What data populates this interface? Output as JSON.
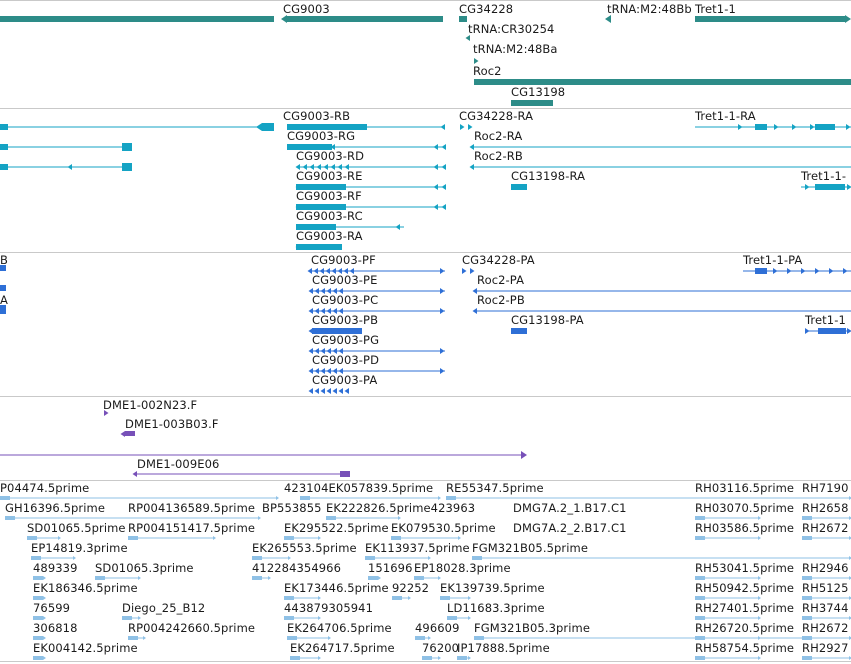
{
  "colors": {
    "gene": "#2d8c88",
    "transcript": "#14a3c4",
    "protein": "#2e6fd6",
    "bac": "#7750b8",
    "est": "#8fc1e6",
    "separator": "#c9c9c9",
    "text": "#1a1a1a"
  },
  "tracks": {
    "genes": {
      "labels": [
        "CG9003",
        "CG34228",
        "tRNA:M2:48Bb",
        "Tret1-1",
        "tRNA:CR30254",
        "tRNA:M2:48Ba",
        "Roc2",
        "CG13198"
      ]
    },
    "transcripts": {
      "labels": [
        "CG9003-RB",
        "CG34228-RA",
        "Tret1-1-RA",
        "CG9003-RG",
        "Roc2-RA",
        "CG9003-RD",
        "Roc2-RB",
        "CG9003-RE",
        "CG13198-RA",
        "Tret1-1-",
        "CG9003-RF",
        "CG9003-RC",
        "CG9003-RA"
      ]
    },
    "proteins": {
      "labels": [
        "B",
        "CG9003-PF",
        "CG34228-PA",
        "Tret1-1-PA",
        "CG9003-PE",
        "Roc2-PA",
        "CG9003-PC",
        "A",
        "Roc2-PB",
        "CG9003-PB",
        "CG13198-PA",
        "Tret1-1",
        "CG9003-PG",
        "CG9003-PD",
        "CG9003-PA"
      ]
    },
    "bac": {
      "labels": [
        "DME1-002N23.F",
        "DME1-003B03.F",
        "DME1-009E06"
      ]
    },
    "est": {
      "labels": [
        "P04474.5prime",
        "423104EK057839.5prime",
        "RE55347.5prime",
        "RH03116.5prime",
        "RH7190",
        "GH16396.5prime",
        "RP004136589.5prime",
        "BP553855",
        "EK222826.5prime423963",
        "DMG7A.2_1.B17.C1",
        "RH03070.5prime",
        "RH2658",
        "SD01065.5prime",
        "RP004151417.5prime",
        "EK295522.5prime",
        "EK079530.5prime",
        "DMG7A.2_2.B17.C1",
        "RH03586.5prime",
        "RH2672",
        "EP14819.3prime",
        "EK265553.5prime",
        "EK113937.5prime",
        "FGM321B05.5prime",
        "489339",
        "SD01065.3prime",
        "412284354966",
        "151696",
        "EP18028.3prime",
        "RH53041.5prime",
        "RH2946",
        "EK186346.5prime",
        "EK173446.5prime",
        "92252",
        "EK139739.5prime",
        "RH50942.5prime",
        "RH5125",
        "76599",
        "Diego_25_B12",
        "443879305941",
        "LD11683.3prime",
        "RH27401.5prime",
        "RH3744",
        "306818",
        "RP004242660.5prime",
        "EK264706.5prime",
        "496609",
        "FGM321B05.3prime",
        "RH26720.5prime",
        "RH2672",
        "EK004142.5prime",
        "EK264717.5prime",
        "76200",
        "IP17888.5prime",
        "RH58754.5prime",
        "RH2927"
      ]
    }
  }
}
